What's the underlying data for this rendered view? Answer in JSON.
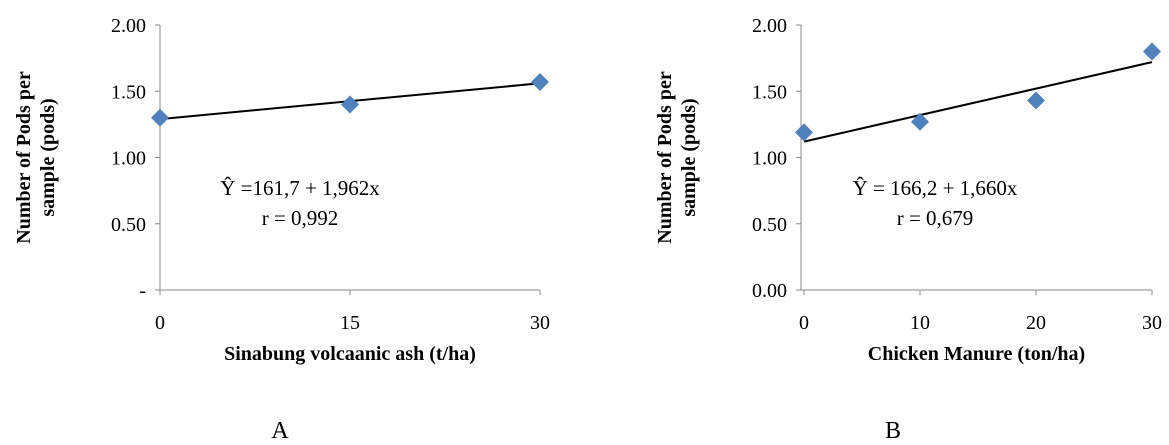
{
  "chart_data": [
    {
      "type": "scatter",
      "panel_label": "A",
      "xlabel": "Sinabung volcaanic ash (t/ha)",
      "ylabel": [
        "Number of Pods per",
        "sample (pods)"
      ],
      "x": [
        0,
        15,
        30
      ],
      "y": [
        1.3,
        1.4,
        1.57
      ],
      "xlim": [
        0,
        30
      ],
      "ylim": [
        0,
        2
      ],
      "xticks": [
        0,
        15,
        30
      ],
      "xtick_labels": [
        "0",
        "15",
        "30"
      ],
      "yticks": [
        0,
        0.5,
        1,
        1.5,
        2
      ],
      "ytick_labels": [
        "-",
        "0.50",
        "1.00",
        "1.50",
        "2.00"
      ],
      "trendline": {
        "x": [
          0,
          30
        ],
        "y": [
          1.29,
          1.56
        ]
      },
      "equation": "Ŷ =161,7 + 1,962x",
      "r_label": "r = 0,992",
      "marker": "diamond",
      "marker_color": "#4f81bd",
      "grid": false
    },
    {
      "type": "scatter",
      "panel_label": "B",
      "xlabel": "Chicken Manure (ton/ha)",
      "ylabel": [
        "Number of Pods per",
        "sample (pods)"
      ],
      "x": [
        0,
        10,
        20,
        30
      ],
      "y": [
        1.19,
        1.27,
        1.43,
        1.8
      ],
      "xlim": [
        0,
        30
      ],
      "ylim": [
        0,
        2
      ],
      "xticks": [
        0,
        10,
        20,
        30
      ],
      "xtick_labels": [
        "0",
        "10",
        "20",
        "30"
      ],
      "yticks": [
        0,
        0.5,
        1,
        1.5,
        2
      ],
      "ytick_labels": [
        "0.00",
        "0.50",
        "1.00",
        "1.50",
        "2.00"
      ],
      "trendline": {
        "x": [
          0,
          30
        ],
        "y": [
          1.12,
          1.72
        ]
      },
      "equation": "Ŷ = 166,2 + 1,660x",
      "r_label": "r = 0,679",
      "marker": "diamond",
      "marker_color": "#4f81bd",
      "grid": false
    }
  ]
}
